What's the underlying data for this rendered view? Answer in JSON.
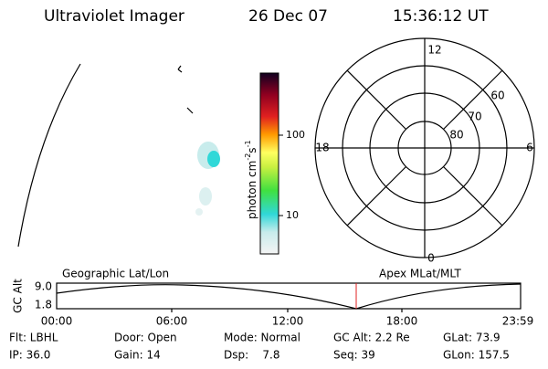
{
  "header": {
    "instrument": "Ultraviolet Imager",
    "date": "26 Dec 07",
    "time": "15:36:12 UT"
  },
  "colorbar": {
    "label": "photon cm",
    "label_sup1": "-2",
    "label_mid": "s",
    "label_sup2": "-1",
    "ticks": [
      "100",
      "10"
    ]
  },
  "polar": {
    "lat_labels": [
      "60",
      "70",
      "80"
    ],
    "mlt_labels": {
      "top": "12",
      "left": "18",
      "right": "6",
      "bottom": "0"
    }
  },
  "timeline": {
    "left_title": "Geographic Lat/Lon",
    "right_title": "Apex MLat/MLT",
    "y_label": "GC Alt",
    "y_ticks": [
      "9.0",
      "1.8"
    ],
    "x_ticks": [
      "00:00",
      "06:00",
      "12:00",
      "18:00",
      "23:59"
    ]
  },
  "info": {
    "rows": [
      [
        "Flt: LBHL",
        "Door: Open",
        "Mode: Normal",
        "GC Alt: 2.2 Re",
        "GLat: 73.9"
      ],
      [
        "IP: 36.0",
        "Gain: 14",
        "Dsp:    7.8",
        "Seq: 39",
        "GLon: 157.5"
      ]
    ]
  }
}
